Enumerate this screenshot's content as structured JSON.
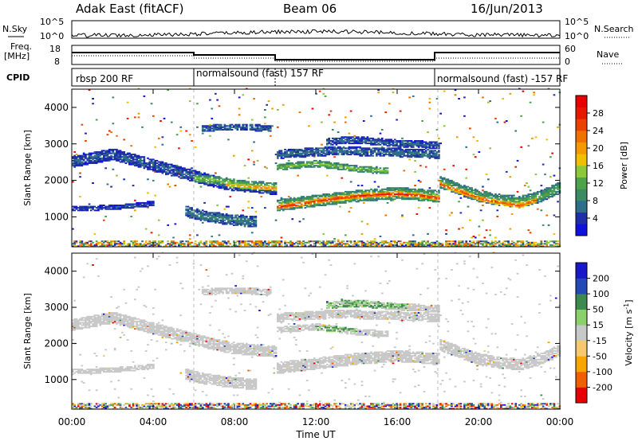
{
  "header": {
    "station": "Adak East (fitACF)",
    "beam": "Beam 06",
    "date": "16/Jun/2013"
  },
  "nsky_panel": {
    "left_label": "N.Sky",
    "right_label": "N.Search",
    "left_ticks": [
      "10^5",
      "10^0"
    ],
    "right_ticks": [
      "10^5",
      "10^0"
    ]
  },
  "freq_panel": {
    "left_label_1": "Freq.",
    "left_label_2": "[MHz]",
    "right_label": "Nave",
    "left_ticks": [
      "18",
      "8"
    ],
    "right_ticks": [
      "60",
      "0"
    ]
  },
  "cpid_panel": {
    "label": "CPID",
    "segments": [
      {
        "start_hour": 0,
        "end_hour": 6,
        "name": "rbsp 200 RF"
      },
      {
        "start_hour": 6,
        "end_hour": 10,
        "name": "normalsound (fast) 157 RF"
      },
      {
        "start_hour": 10,
        "end_hour": 18,
        "name": ""
      },
      {
        "start_hour": 18,
        "end_hour": 24,
        "name": "normalsound (fast) -157 RF"
      }
    ]
  },
  "chart_data": [
    {
      "type": "heatmap",
      "parameter": "Power",
      "ylabel": "Slant Range [km]",
      "yticks": [
        1000,
        2000,
        3000,
        4000
      ],
      "ylim": [
        180,
        4500
      ],
      "xlim": [
        0,
        24
      ],
      "colorbar": {
        "label": "Power [dB]",
        "range": [
          0,
          32
        ],
        "ticks": [
          "4",
          "8",
          "12",
          "16",
          "20",
          "24",
          "28"
        ],
        "colors": [
          "#1010e0",
          "#1e2fa8",
          "#2e6e8a",
          "#3c8a64",
          "#4da24a",
          "#8cc83c",
          "#f0c000",
          "#f39a00",
          "#f07000",
          "#ea4000",
          "#e81800",
          "#e80000"
        ]
      },
      "echo_bands": [
        {
          "t": [
            0.0,
            2.0,
            4.0,
            6.0,
            7.0,
            8.0,
            9.5,
            10.0
          ],
          "r": [
            2500,
            2700,
            2400,
            2100,
            1950,
            1850,
            1780,
            1750
          ],
          "w": 160,
          "p": 6
        },
        {
          "t": [
            6.0,
            7.0,
            8.0,
            9.0,
            10.0
          ],
          "r": [
            2050,
            2000,
            1900,
            1850,
            1820
          ],
          "w": 110,
          "p": 14
        },
        {
          "t": [
            7.5,
            8.5,
            9.5,
            10.0
          ],
          "r": [
            1880,
            1820,
            1780,
            1760
          ],
          "w": 60,
          "p": 22
        },
        {
          "t": [
            10.0,
            12.0,
            14.0,
            16.0,
            18.0
          ],
          "r": [
            1300,
            1430,
            1560,
            1640,
            1550
          ],
          "w": 160,
          "p": 14
        },
        {
          "t": [
            10.0,
            11.0,
            12.0,
            13.0,
            14.0,
            15.0,
            16.0,
            17.0,
            18.0
          ],
          "r": [
            1250,
            1330,
            1420,
            1500,
            1560,
            1600,
            1620,
            1580,
            1500
          ],
          "w": 70,
          "p": 28
        },
        {
          "t": [
            18.0,
            19.0,
            20.0,
            21.0,
            22.0,
            23.0,
            24.0
          ],
          "r": [
            1950,
            1750,
            1550,
            1450,
            1400,
            1550,
            1800
          ],
          "w": 160,
          "p": 12
        },
        {
          "t": [
            18.0,
            19.0,
            20.0,
            21.0,
            22.0,
            22.8
          ],
          "r": [
            1900,
            1700,
            1500,
            1380,
            1300,
            1450
          ],
          "w": 70,
          "p": 26
        },
        {
          "t": [
            12.5,
            14.0,
            16.0,
            18.0
          ],
          "r": [
            3050,
            3100,
            3000,
            2950
          ],
          "w": 100,
          "p": 6
        },
        {
          "t": [
            10.0,
            12.0,
            14.0,
            15.5
          ],
          "r": [
            2350,
            2450,
            2300,
            2250
          ],
          "w": 90,
          "p": 14
        },
        {
          "t": [
            6.3,
            7.5,
            8.5,
            9.8
          ],
          "r": [
            3400,
            3450,
            3450,
            3400
          ],
          "w": 90,
          "p": 7
        },
        {
          "t": [
            5.5,
            6.5,
            8.0,
            9.0
          ],
          "r": [
            1150,
            1000,
            900,
            850
          ],
          "w": 150,
          "p": 8
        },
        {
          "t": [
            0.0,
            2.0,
            4.0
          ],
          "r": [
            1200,
            1250,
            1350
          ],
          "w": 70,
          "p": 5
        },
        {
          "t": [
            10.0,
            13.0,
            16.0,
            18.0
          ],
          "r": [
            2700,
            2800,
            2750,
            2700
          ],
          "w": 120,
          "p": 7
        }
      ],
      "ground_scatter_range": [
        200,
        320
      ]
    },
    {
      "type": "heatmap",
      "parameter": "Velocity",
      "ylabel": "Slant Range [km]",
      "yticks": [
        1000,
        2000,
        3000,
        4000
      ],
      "ylim": [
        180,
        4500
      ],
      "xlim": [
        0,
        24
      ],
      "xlabel": "Time UT",
      "xticks": [
        "00:00",
        "04:00",
        "08:00",
        "12:00",
        "16:00",
        "20:00",
        "00:00"
      ],
      "colorbar": {
        "label": "Velocity [m s^-1]",
        "range": [
          -250,
          250
        ],
        "ticks": [
          "-200",
          "-100",
          "-50",
          "-15",
          "15",
          "50",
          "100",
          "200"
        ],
        "colors": [
          "#e80000",
          "#f06000",
          "#f7a600",
          "#f6c870",
          "#c8c8c8",
          "#8cd06a",
          "#3c8a50",
          "#2448b4",
          "#1818c8"
        ]
      },
      "velocity_note": "Mostly ground scatter (-15..15 m/s, grey) with green patches near 3000-3200 km at 12-16 UT"
    }
  ]
}
